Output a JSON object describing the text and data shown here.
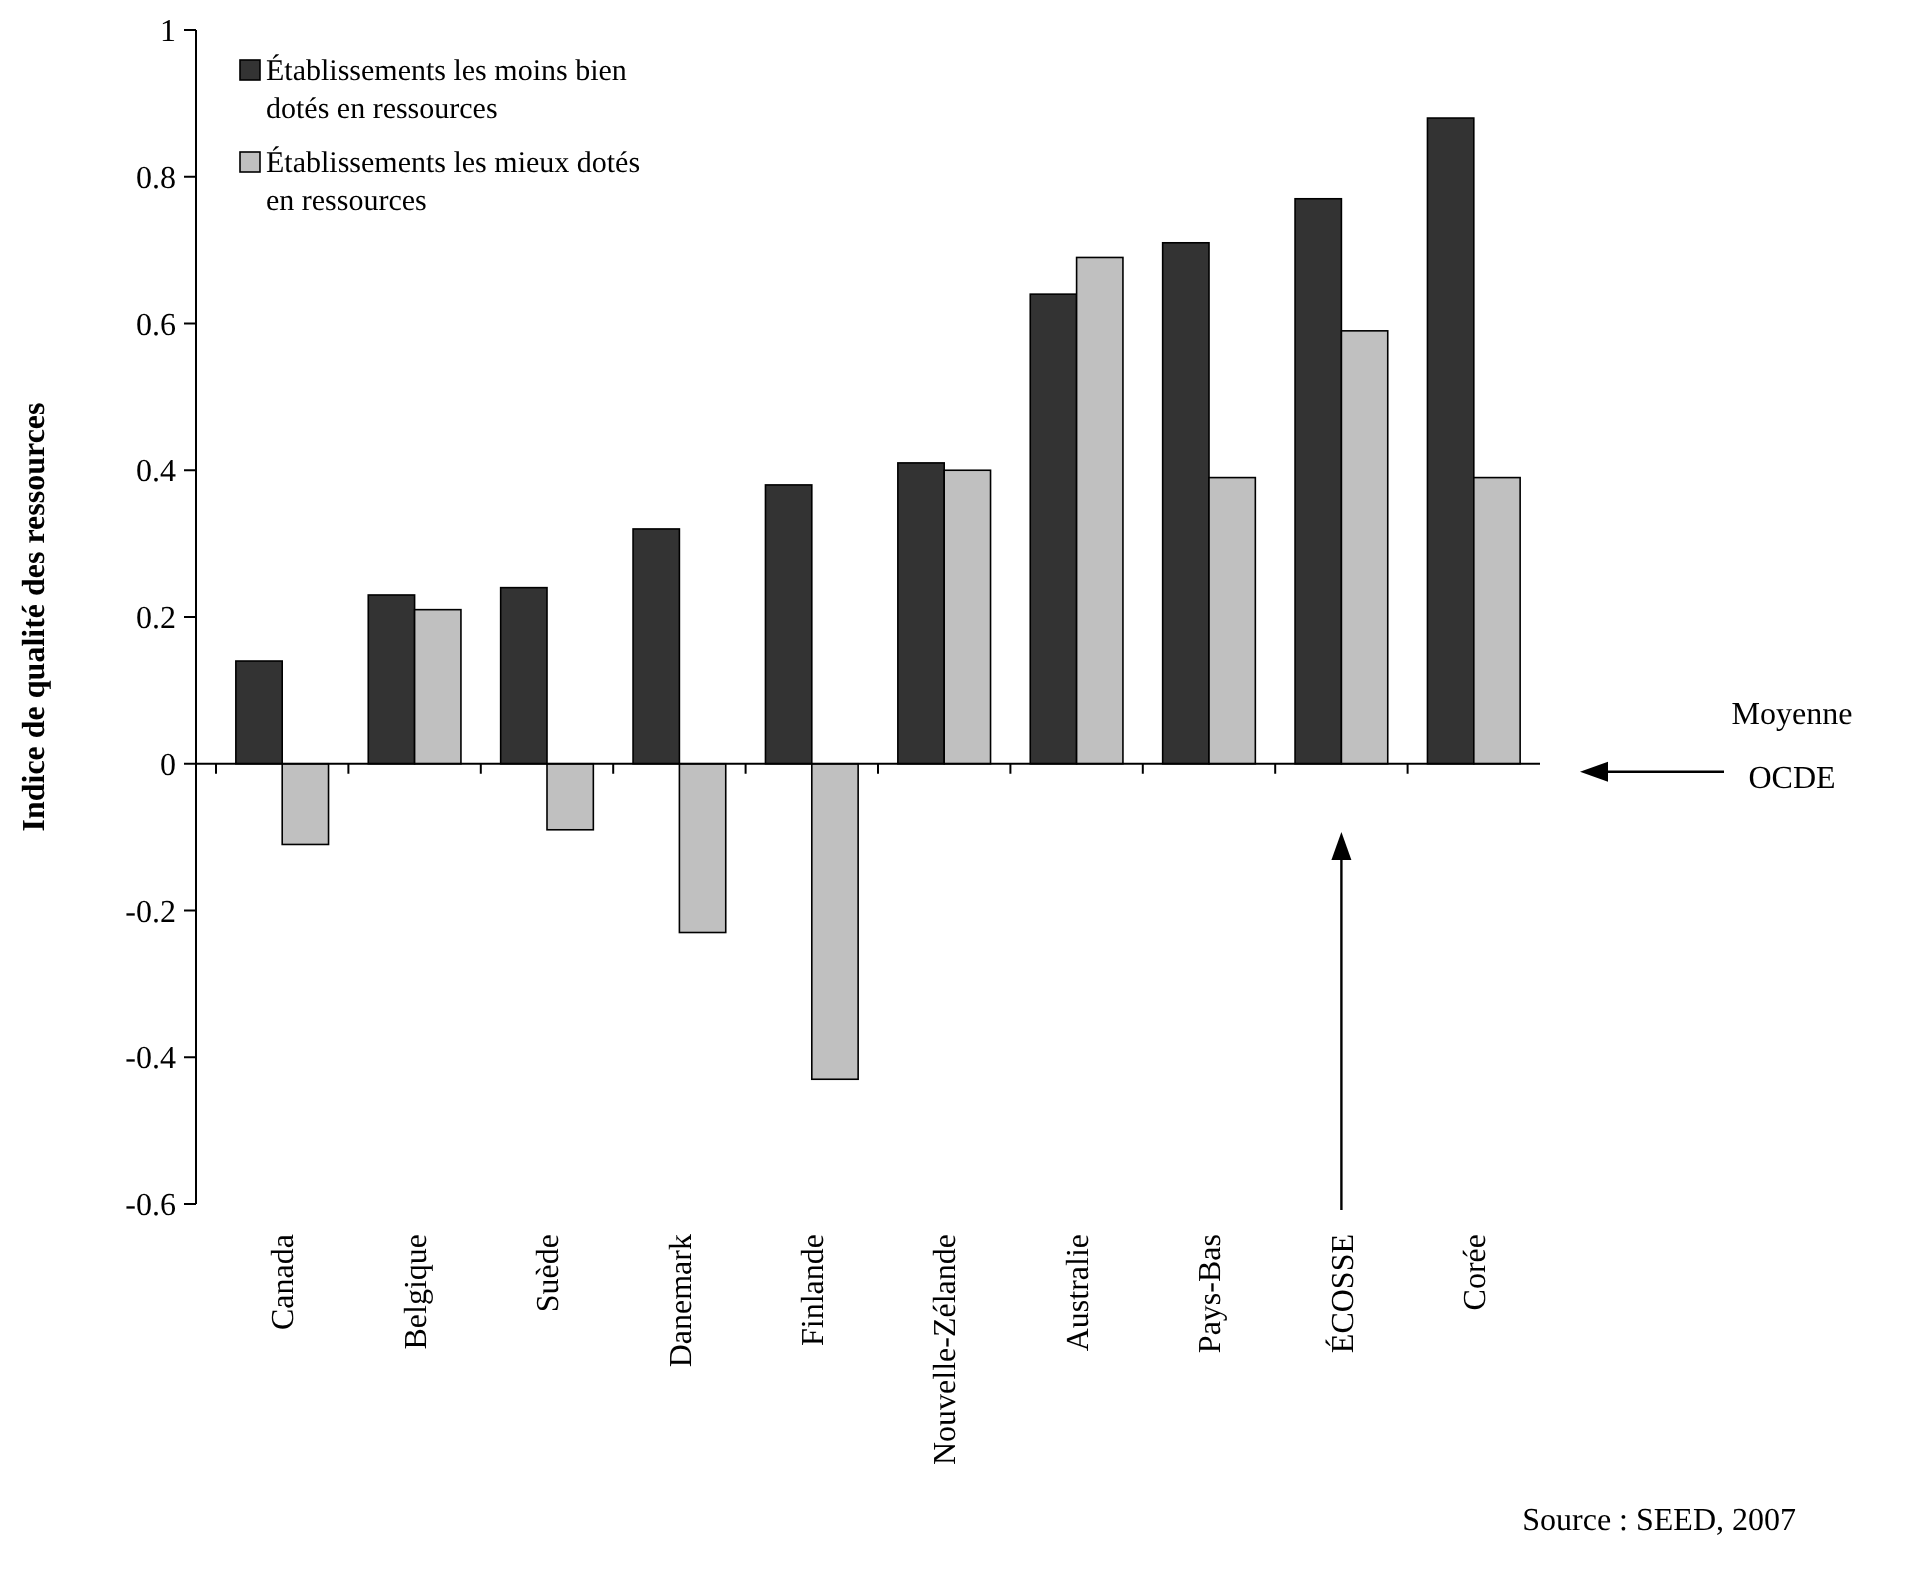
{
  "chart_data": {
    "type": "bar",
    "ylabel": "Indice de qualité des ressources",
    "categories": [
      "Canada",
      "Belgique",
      "Suède",
      "Danemark",
      "Finlande",
      "Nouvelle-Zélande",
      "Australie",
      "Pays-Bas",
      "ÉCOSSE",
      "Corée"
    ],
    "series": [
      {
        "name": "Établissements les moins bien dotés en ressources",
        "color": "#333333",
        "values": [
          0.14,
          0.23,
          0.24,
          0.32,
          0.38,
          0.41,
          0.64,
          0.71,
          0.77,
          0.88
        ]
      },
      {
        "name": "Établissements les mieux dotés en ressources",
        "color": "#c0c0c0",
        "values": [
          -0.11,
          0.21,
          -0.09,
          -0.23,
          -0.43,
          0.4,
          0.69,
          0.39,
          0.59,
          0.39
        ]
      }
    ],
    "ylim": [
      -0.6,
      1
    ],
    "yticks": [
      -0.6,
      -0.4,
      -0.2,
      0,
      0.2,
      0.4,
      0.6,
      0.8,
      1
    ],
    "legend": "top left",
    "annotations": [
      "Moyenne OCDE",
      "Source : SEED, 2007"
    ]
  }
}
